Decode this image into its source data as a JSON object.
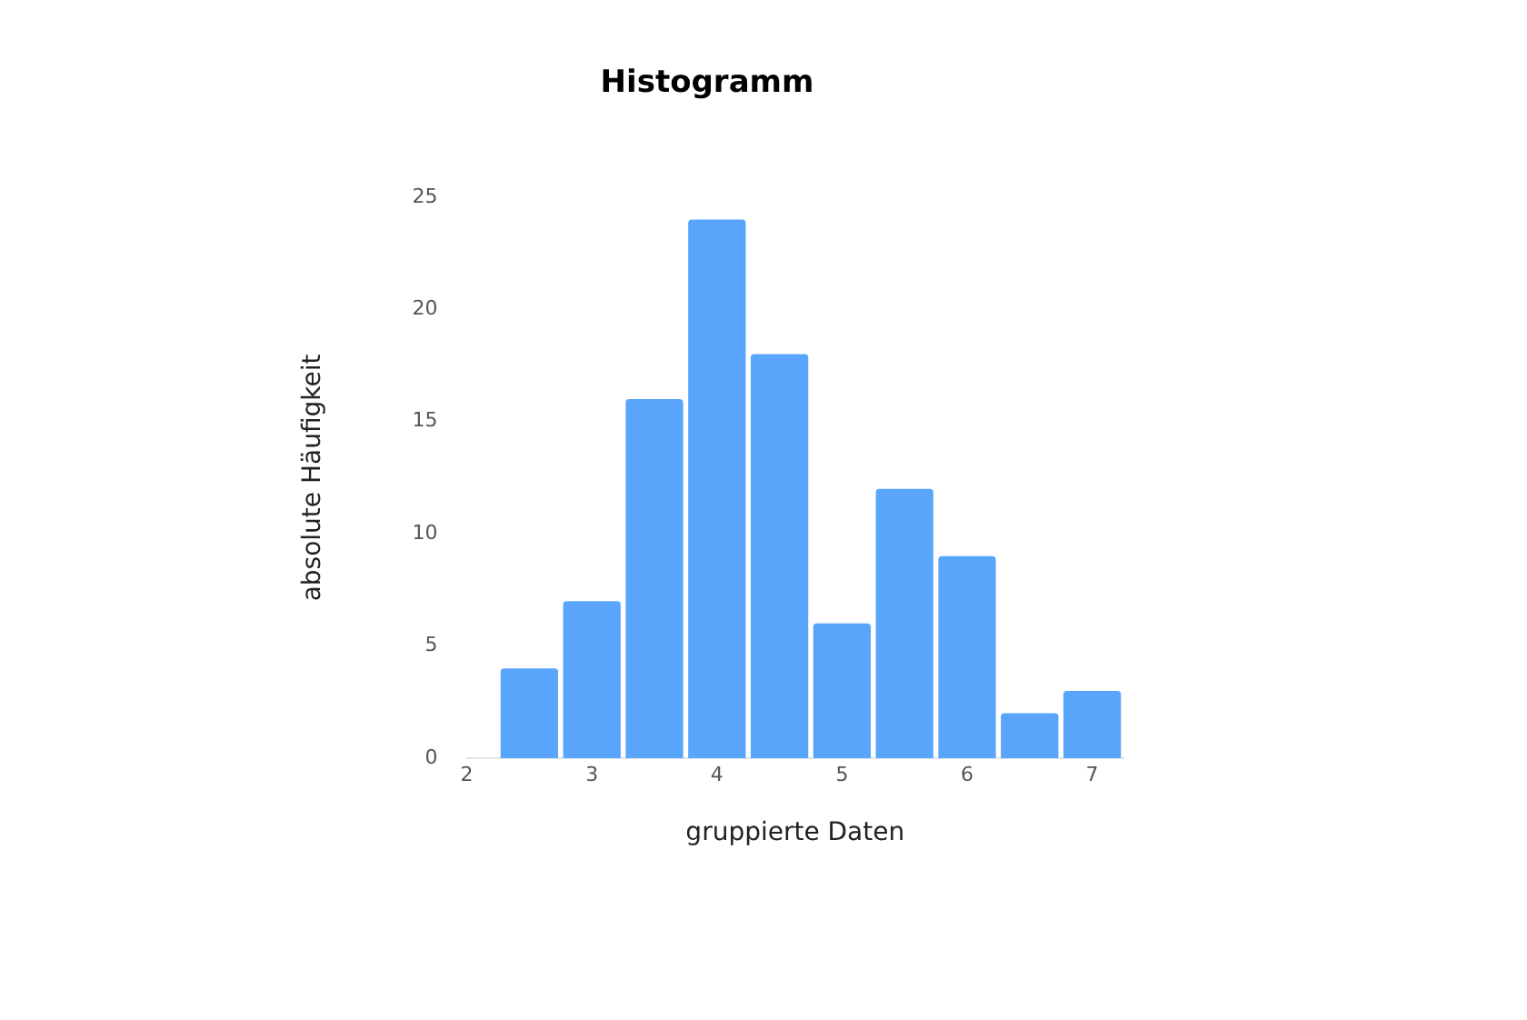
{
  "chart_data": {
    "type": "histogram",
    "title": "Histogramm",
    "xlabel": "gruppierte Daten",
    "ylabel": "absolute Häufigkeit",
    "bins": [
      2.25,
      2.75,
      3.25,
      3.75,
      4.25,
      4.75,
      5.25,
      5.75,
      6.25,
      6.75,
      7.25
    ],
    "values": [
      4,
      7,
      16,
      24,
      18,
      6,
      12,
      9,
      2,
      3
    ],
    "color": "#5aa5fc",
    "xlim": [
      2,
      7.25
    ],
    "xticks": [
      2,
      3,
      4,
      5,
      6,
      7
    ],
    "ylim": [
      0,
      25
    ],
    "yticks": [
      0,
      5,
      10,
      15,
      20,
      25
    ],
    "grid": false,
    "legend": false
  }
}
